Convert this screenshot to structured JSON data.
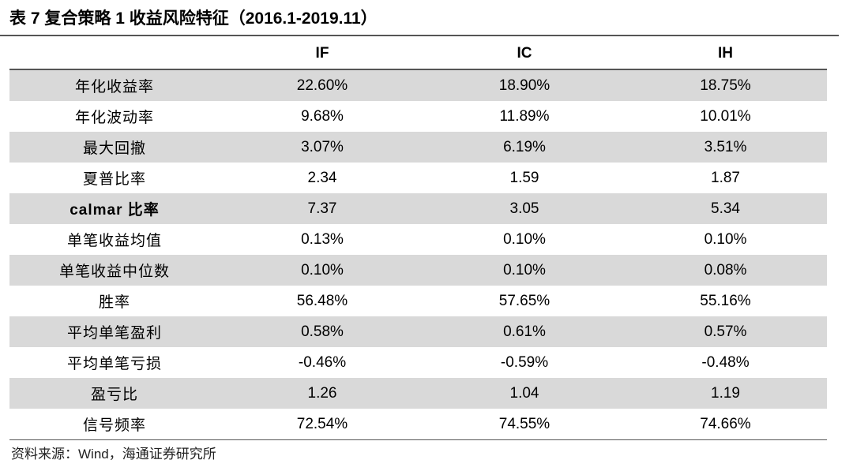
{
  "title": {
    "prefix": "表 7",
    "text": "复合策略 1 收益风险特征（2016.1-2019.11）"
  },
  "table": {
    "headers": [
      "",
      "IF",
      "IC",
      "IH"
    ],
    "rows": [
      {
        "label": "年化收益率",
        "values": [
          "22.60%",
          "18.90%",
          "18.75%"
        ]
      },
      {
        "label": "年化波动率",
        "values": [
          "9.68%",
          "11.89%",
          "10.01%"
        ]
      },
      {
        "label": "最大回撤",
        "values": [
          "3.07%",
          "6.19%",
          "3.51%"
        ]
      },
      {
        "label": "夏普比率",
        "values": [
          "2.34",
          "1.59",
          "1.87"
        ]
      },
      {
        "label": "calmar 比率",
        "values": [
          "7.37",
          "3.05",
          "5.34"
        ]
      },
      {
        "label": "单笔收益均值",
        "values": [
          "0.13%",
          "0.10%",
          "0.10%"
        ]
      },
      {
        "label": "单笔收益中位数",
        "values": [
          "0.10%",
          "0.10%",
          "0.08%"
        ]
      },
      {
        "label": "胜率",
        "values": [
          "56.48%",
          "57.65%",
          "55.16%"
        ]
      },
      {
        "label": "平均单笔盈利",
        "values": [
          "0.58%",
          "0.61%",
          "0.57%"
        ]
      },
      {
        "label": "平均单笔亏损",
        "values": [
          "-0.46%",
          "-0.59%",
          "-0.48%"
        ]
      },
      {
        "label": "盈亏比",
        "values": [
          "1.26",
          "1.04",
          "1.19"
        ]
      },
      {
        "label": "信号频率",
        "values": [
          "72.54%",
          "74.55%",
          "74.66%"
        ]
      }
    ]
  },
  "footer": "资料来源：Wind，海通证券研究所",
  "colors": {
    "shade_row": "#d9d9d9",
    "rule": "#555555"
  }
}
